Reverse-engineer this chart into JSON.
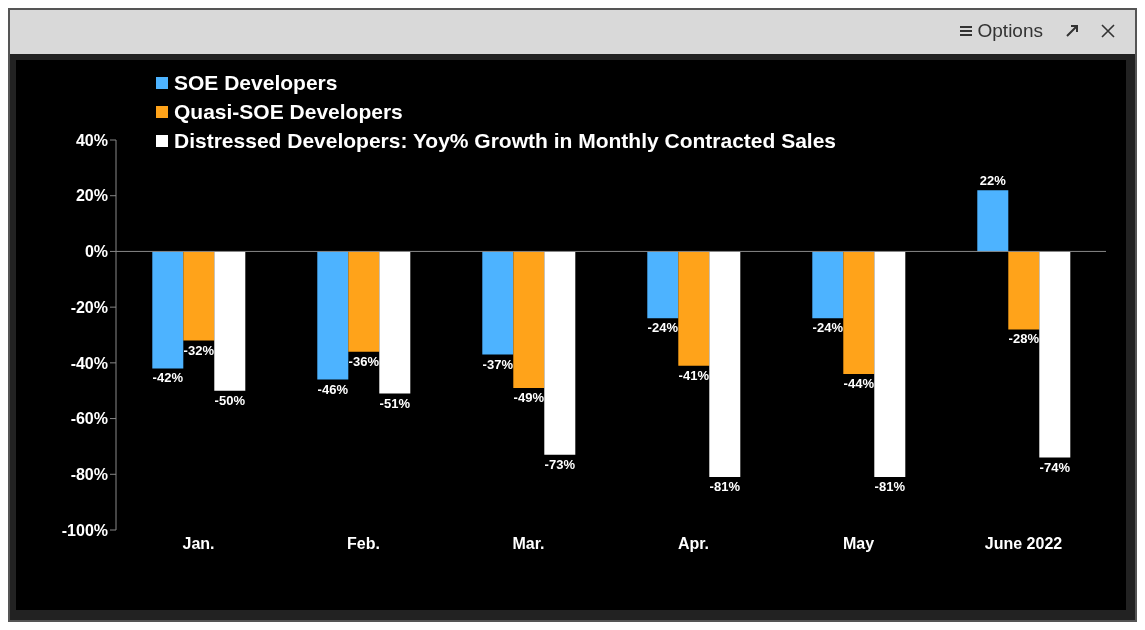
{
  "chart_data": {
    "type": "bar",
    "categories": [
      "Jan.",
      "Feb.",
      "Mar.",
      "Apr.",
      "May",
      "June 2022"
    ],
    "series": [
      {
        "name": "SOE Developers",
        "color": "#4db3ff",
        "values": [
          -42,
          -46,
          -37,
          -24,
          -24,
          22
        ],
        "value_labels": [
          "-42%",
          "-46%",
          "-37%",
          "-24%",
          "-24%",
          "22%"
        ]
      },
      {
        "name": "Quasi-SOE Developers",
        "color": "#ffa31a",
        "values": [
          -32,
          -36,
          -49,
          -41,
          -44,
          -28
        ],
        "value_labels": [
          "-32%",
          "-36%",
          "-49%",
          "-41%",
          "-44%",
          "-28%"
        ]
      },
      {
        "name": "Distressed Developers: Yoy% Growth in Monthly Contracted Sales",
        "color": "#ffffff",
        "values": [
          -50,
          -51,
          -73,
          -81,
          -81,
          -74
        ],
        "value_labels": [
          "-50%",
          "-51%",
          "-73%",
          "-81%",
          "-81%",
          "-74%"
        ]
      }
    ],
    "ylim": [
      -100,
      40
    ],
    "yticks": [
      {
        "value": -100,
        "label": "-100%"
      },
      {
        "value": -80,
        "label": "-80%"
      },
      {
        "value": -60,
        "label": "-60%"
      },
      {
        "value": -40,
        "label": "-40%"
      },
      {
        "value": -20,
        "label": "-20%"
      },
      {
        "value": 0,
        "label": "0%"
      },
      {
        "value": 20,
        "label": "20%"
      },
      {
        "value": 40,
        "label": "40%"
      }
    ],
    "legend": "top left",
    "annotations": [
      "Options"
    ]
  }
}
